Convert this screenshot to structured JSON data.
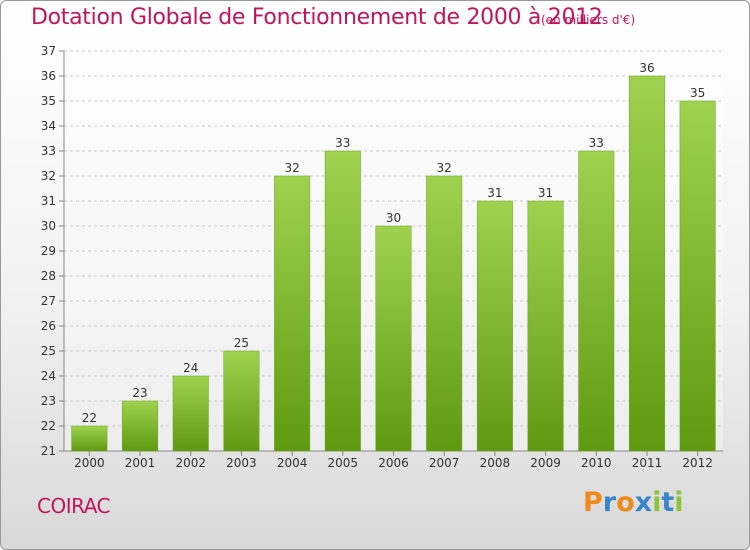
{
  "chart_data": {
    "type": "bar",
    "title": "Dotation Globale de Fonctionnement de 2000 à 2012",
    "unit": "(en milliers d'€)",
    "categories": [
      "2000",
      "2001",
      "2002",
      "2003",
      "2004",
      "2005",
      "2006",
      "2007",
      "2008",
      "2009",
      "2010",
      "2011",
      "2012"
    ],
    "values": [
      22,
      23,
      24,
      25,
      32,
      33,
      30,
      32,
      31,
      31,
      33,
      36,
      35
    ],
    "ylim": [
      21,
      37
    ],
    "yticks": [
      21,
      22,
      23,
      24,
      25,
      26,
      27,
      28,
      29,
      30,
      31,
      32,
      33,
      34,
      35,
      36,
      37
    ],
    "grid": true,
    "bar_color_light": "#9fd24e",
    "bar_color_dark": "#5f9a10"
  },
  "commune": "COIRAC",
  "logo": {
    "text": "Proxiti",
    "letters": [
      "P",
      "r",
      "o",
      "x",
      "i",
      "t",
      "i"
    ],
    "colors": [
      "#f08a1c",
      "#3a86c8",
      "#f08a1c",
      "#3a86c8",
      "#8cc43c",
      "#3a86c8",
      "#8cc43c"
    ]
  }
}
